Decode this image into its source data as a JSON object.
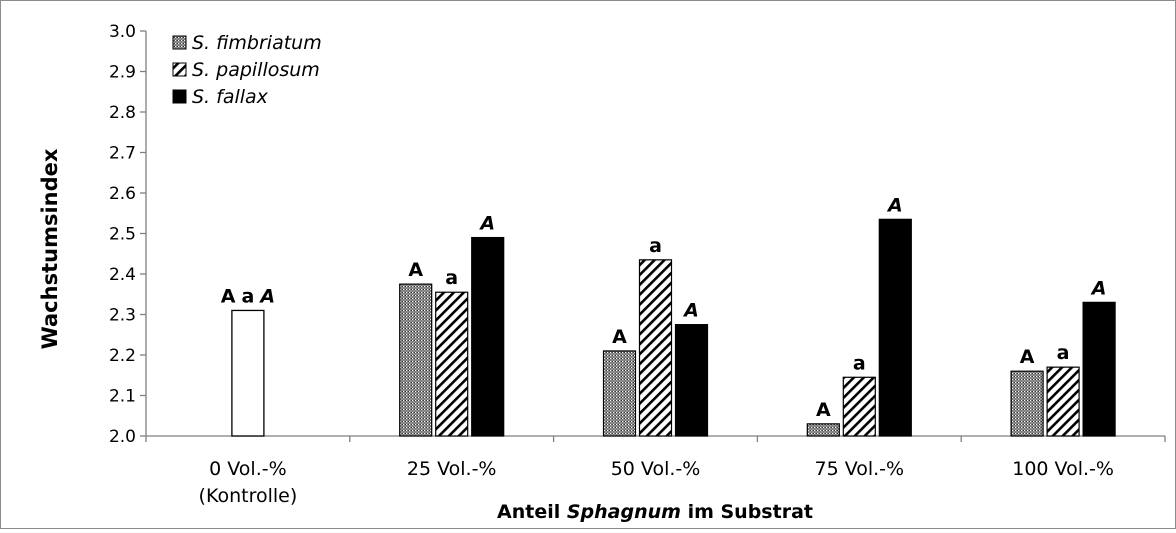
{
  "chart_data": {
    "type": "bar",
    "xlabel_parts": [
      {
        "text": "Anteil ",
        "italic": false
      },
      {
        "text": "Sphagnum",
        "italic": true
      },
      {
        "text": " im Substrat",
        "italic": false
      }
    ],
    "ylabel": "Wachstumsindex",
    "ylim": [
      2.0,
      3.0
    ],
    "yticks": [
      "2.0",
      "2.1",
      "2.2",
      "2.3",
      "2.4",
      "2.5",
      "2.6",
      "2.7",
      "2.8",
      "2.9",
      "3.0"
    ],
    "categories": [
      {
        "label": "0 Vol.-%",
        "sublabel": "(Kontrolle)"
      },
      {
        "label": "25 Vol.-%",
        "sublabel": ""
      },
      {
        "label": "50 Vol.-%",
        "sublabel": ""
      },
      {
        "label": "75 Vol.-%",
        "sublabel": ""
      },
      {
        "label": "100 Vol.-%",
        "sublabel": ""
      }
    ],
    "control": {
      "value": 2.31,
      "annotations": [
        {
          "text": "A",
          "italic": false
        },
        {
          "text": "a",
          "italic": false
        },
        {
          "text": "A",
          "italic": true
        }
      ]
    },
    "series": [
      {
        "name": "S. fimbriatum",
        "pattern": "dots",
        "values": [
          null,
          2.375,
          2.21,
          2.03,
          2.16
        ],
        "annotation": "A",
        "annotation_italic": false
      },
      {
        "name": "S. papillosum",
        "pattern": "hatch",
        "values": [
          null,
          2.355,
          2.435,
          2.145,
          2.17
        ],
        "annotation": "a",
        "annotation_italic": false
      },
      {
        "name": "S. fallax",
        "pattern": "solid",
        "values": [
          null,
          2.49,
          2.275,
          2.535,
          2.33
        ],
        "annotation": "A",
        "annotation_italic": true
      }
    ],
    "legend_position": "top-left",
    "grid": false,
    "colors": {
      "axis": "#808080",
      "bar_stroke": "#000000",
      "solid": "#000000",
      "control_fill": "#ffffff"
    }
  }
}
